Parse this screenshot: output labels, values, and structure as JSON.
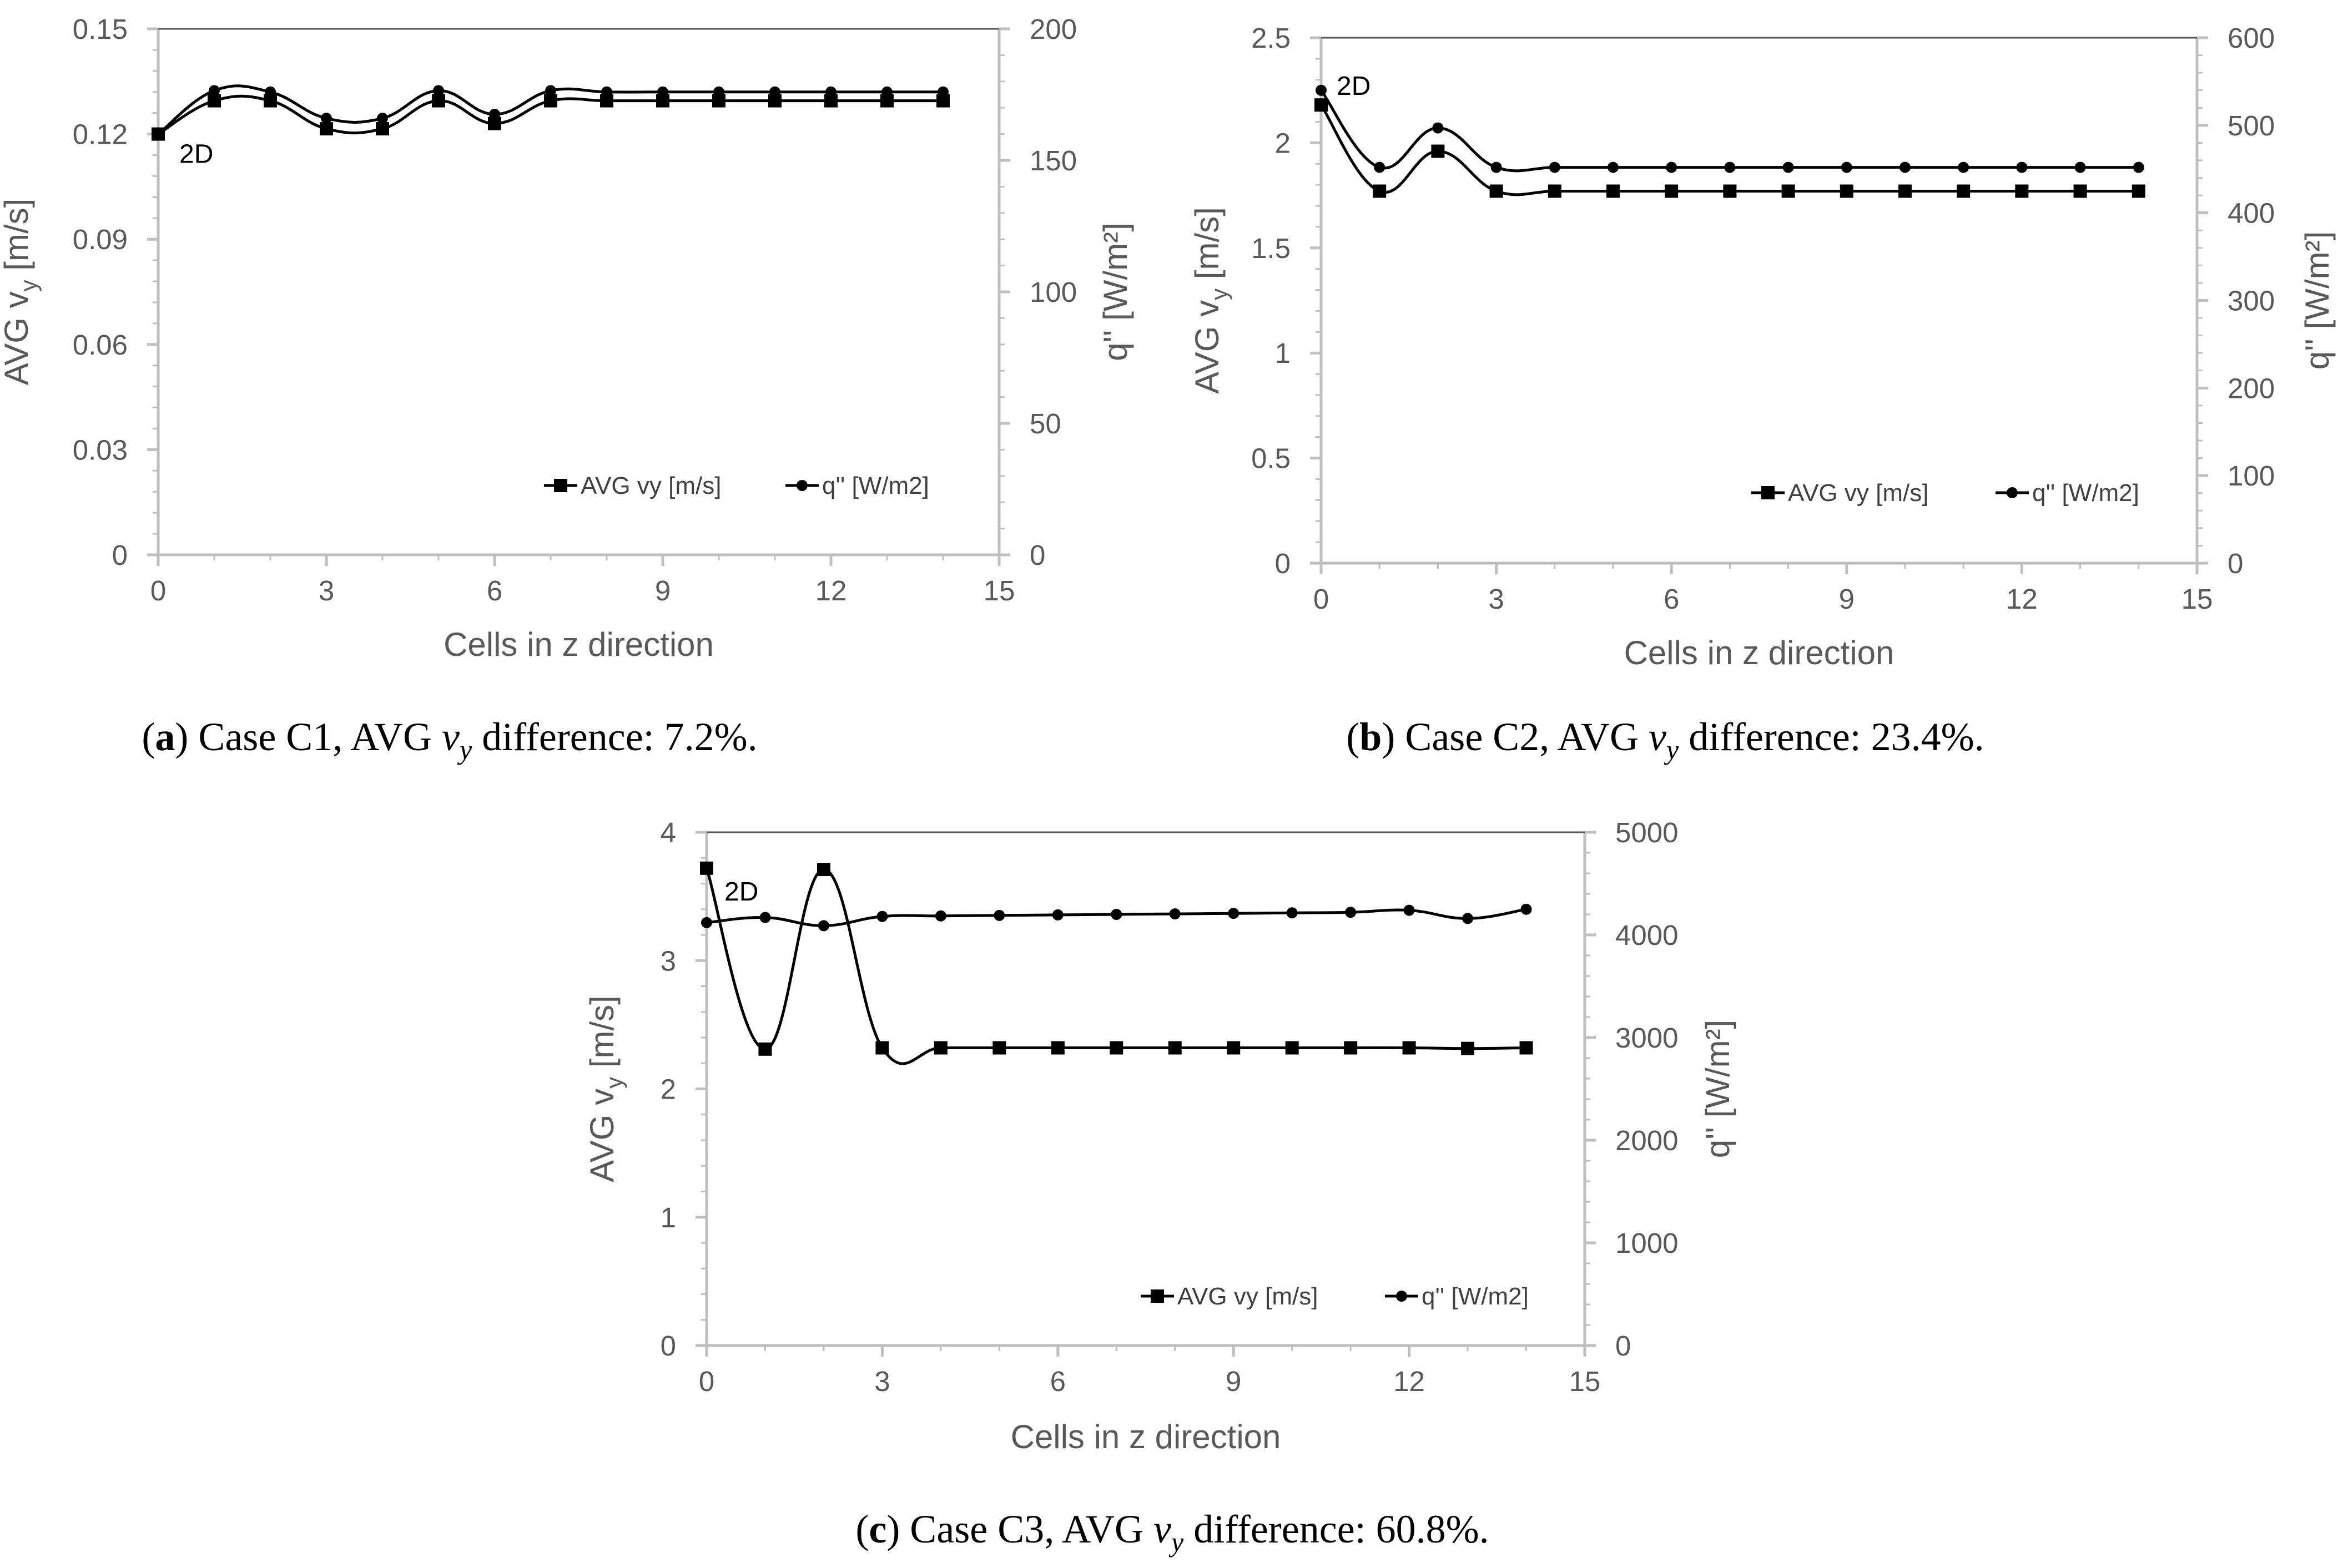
{
  "figure": {
    "panels": [
      {
        "caption": {
          "label": "a",
          "before": "Case C1, AVG ",
          "var": "v",
          "sub": "y",
          "after": " difference: 7.2%."
        },
        "legend": [
          "AVG vy [m/s]",
          "q'' [W/m2]"
        ],
        "annotation": "2D"
      },
      {
        "caption": {
          "label": "b",
          "before": "Case C2, AVG ",
          "var": "v",
          "sub": "y",
          "after": " difference: 23.4%."
        },
        "legend": [
          "AVG vy [m/s]",
          "q'' [W/m2]"
        ],
        "annotation": "2D"
      },
      {
        "caption": {
          "label": "c",
          "before": "Case C3, AVG ",
          "var": "v",
          "sub": "y",
          "after": " difference: 60.8%."
        },
        "legend": [
          "AVG vy [m/s]",
          "q'' [W/m2]"
        ],
        "annotation": "2D"
      }
    ]
  },
  "chart_data": [
    {
      "type": "line",
      "title": "Case C1",
      "xlabel": "Cells in z direction",
      "ylabel": {
        "main": "AVG v",
        "sub": "y",
        "unit": " [m/s]"
      },
      "y2label": "q'' [W/m²]",
      "xlim": [
        0,
        15
      ],
      "ylim": [
        0,
        0.15
      ],
      "y2lim": [
        0,
        200
      ],
      "xticks": [
        "0",
        "3",
        "6",
        "9",
        "12",
        "15"
      ],
      "yticks": [
        "0",
        "0.03",
        "0.06",
        "0.09",
        "0.12",
        "0.15"
      ],
      "y2ticks": [
        "0",
        "50",
        "100",
        "150",
        "200"
      ],
      "x": [
        0,
        1,
        2,
        3,
        4,
        5,
        6,
        7,
        8,
        9,
        10,
        11,
        12,
        13,
        14
      ],
      "series": [
        {
          "name": "AVG vy [m/s]",
          "axis": "left",
          "marker": "square",
          "values": [
            0.12,
            0.1295,
            0.1295,
            0.1215,
            0.1215,
            0.1295,
            0.123,
            0.1295,
            0.1295,
            0.1295,
            0.1295,
            0.1295,
            0.1295,
            0.1295,
            0.1295
          ]
        },
        {
          "name": "q'' [W/m2]",
          "axis": "right",
          "marker": "circle",
          "values": [
            160,
            176.5,
            176,
            166,
            166,
            176.5,
            167.5,
            176.5,
            176,
            176,
            176,
            176,
            176,
            176,
            176
          ]
        }
      ]
    },
    {
      "type": "line",
      "title": "Case C2",
      "xlabel": "Cells in z direction",
      "ylabel": {
        "main": "AVG v",
        "sub": "y",
        "unit": " [m/s]"
      },
      "y2label": "q'' [W/m²]",
      "xlim": [
        0,
        15
      ],
      "ylim": [
        0,
        2.5
      ],
      "y2lim": [
        0,
        600
      ],
      "xticks": [
        "0",
        "3",
        "6",
        "9",
        "12",
        "15"
      ],
      "yticks": [
        "0",
        "0.5",
        "1",
        "1.5",
        "2",
        "2.5"
      ],
      "y2ticks": [
        "0",
        "100",
        "200",
        "300",
        "400",
        "500",
        "600"
      ],
      "x": [
        0,
        1,
        2,
        3,
        4,
        5,
        6,
        7,
        8,
        9,
        10,
        11,
        12,
        13,
        14
      ],
      "series": [
        {
          "name": "AVG vy [m/s]",
          "axis": "left",
          "marker": "square",
          "values": [
            2.18,
            1.77,
            1.96,
            1.77,
            1.77,
            1.77,
            1.77,
            1.77,
            1.77,
            1.77,
            1.77,
            1.77,
            1.77,
            1.77,
            1.77
          ]
        },
        {
          "name": "q'' [W/m2]",
          "axis": "right",
          "marker": "circle",
          "values": [
            540,
            452,
            497,
            452,
            452,
            452,
            452,
            452,
            452,
            452,
            452,
            452,
            452,
            452,
            452
          ]
        }
      ]
    },
    {
      "type": "line",
      "title": "Case C3",
      "xlabel": "Cells in z direction",
      "ylabel": {
        "main": "AVG v",
        "sub": "y",
        "unit": " [m/s]"
      },
      "y2label": "q'' [W/m²]",
      "xlim": [
        0,
        15
      ],
      "ylim": [
        0,
        4
      ],
      "y2lim": [
        0,
        5000
      ],
      "xticks": [
        "0",
        "3",
        "6",
        "9",
        "12",
        "15"
      ],
      "yticks": [
        "0",
        "1",
        "2",
        "3",
        "4"
      ],
      "y2ticks": [
        "0",
        "1000",
        "2000",
        "3000",
        "4000",
        "5000"
      ],
      "x": [
        0,
        1,
        2,
        3,
        4,
        5,
        6,
        7,
        8,
        9,
        10,
        11,
        12,
        13,
        14
      ],
      "series": [
        {
          "name": "AVG vy [m/s]",
          "axis": "left",
          "marker": "square",
          "values": [
            3.72,
            2.31,
            3.71,
            2.32,
            2.32,
            2.32,
            2.32,
            2.32,
            2.32,
            2.32,
            2.32,
            2.32,
            2.32,
            2.315,
            2.32
          ]
        },
        {
          "name": "q'' [W/m2]",
          "axis": "right",
          "marker": "circle",
          "values": [
            4120,
            4170,
            4090,
            4180,
            4185,
            4190,
            4195,
            4200,
            4205,
            4210,
            4215,
            4220,
            4240,
            4160,
            4250
          ]
        }
      ]
    }
  ]
}
